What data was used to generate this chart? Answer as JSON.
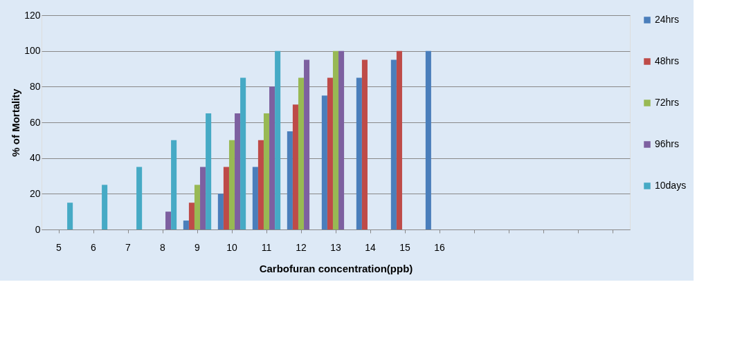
{
  "chart_data": {
    "type": "bar",
    "xlabel": "Carbofuran concentration(ppb)",
    "ylabel": "% of Mortality",
    "categories": [
      "5",
      "6",
      "7",
      "8",
      "9",
      "10",
      "11",
      "12",
      "13",
      "14",
      "15",
      "16",
      null,
      null,
      null,
      null,
      null
    ],
    "series": [
      {
        "name": "24hrs",
        "color": "#4a7ebb",
        "values": [
          null,
          null,
          null,
          null,
          5,
          20,
          35,
          55,
          75,
          85,
          95,
          100,
          null,
          null,
          null,
          null,
          null
        ]
      },
      {
        "name": "48hrs",
        "color": "#be4b48",
        "values": [
          null,
          null,
          null,
          null,
          15,
          35,
          50,
          70,
          85,
          95,
          100,
          null,
          null,
          null,
          null,
          null,
          null
        ]
      },
      {
        "name": "72hrs",
        "color": "#98b954",
        "values": [
          null,
          null,
          null,
          null,
          25,
          50,
          65,
          85,
          100,
          null,
          null,
          null,
          null,
          null,
          null,
          null,
          null
        ]
      },
      {
        "name": "96hrs",
        "color": "#7d60a0",
        "values": [
          null,
          null,
          null,
          10,
          35,
          65,
          80,
          95,
          100,
          null,
          null,
          null,
          null,
          null,
          null,
          null,
          null
        ]
      },
      {
        "name": "10days",
        "color": "#46aac5",
        "values": [
          15,
          25,
          35,
          50,
          65,
          85,
          100,
          null,
          null,
          null,
          null,
          null,
          null,
          null,
          null,
          null,
          null
        ]
      }
    ],
    "ylim": [
      0,
      120
    ],
    "yticks": [
      0,
      20,
      40,
      60,
      80,
      100,
      120
    ],
    "grid": "y",
    "legend": "right"
  }
}
